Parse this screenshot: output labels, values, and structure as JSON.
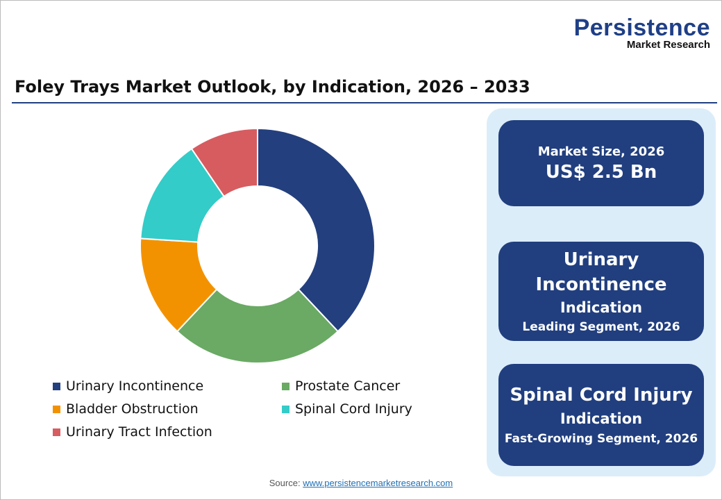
{
  "logo": {
    "name": "Persistence",
    "tagline": "Market Research"
  },
  "title": "Foley Trays  Market Outlook, by Indication, 2026 – 2033",
  "chart_data": {
    "type": "pie",
    "variant": "donut",
    "categories": [
      "Urinary Incontinence",
      "Prostate Cancer",
      "Bladder Obstruction",
      "Spinal Cord Injury",
      "Urinary Tract Infection"
    ],
    "values": [
      38,
      24,
      14,
      14.5,
      9.5
    ],
    "unit": "%",
    "colors": [
      "#233f7d",
      "#6aaa64",
      "#f39200",
      "#33ccc8",
      "#d65c60"
    ],
    "legend_position": "bottom"
  },
  "cards": [
    {
      "lines": [
        "Market Size, 2026",
        "US$ 2.5 Bn"
      ]
    },
    {
      "lines": [
        "Urinary",
        "Incontinence",
        "Indication",
        "Leading Segment, 2026"
      ]
    },
    {
      "lines": [
        "Spinal Cord Injury",
        "Indication",
        "Fast-Growing Segment, 2026"
      ]
    }
  ],
  "source": {
    "label": "Source:",
    "link": "www.persistencemarketresearch.com"
  }
}
